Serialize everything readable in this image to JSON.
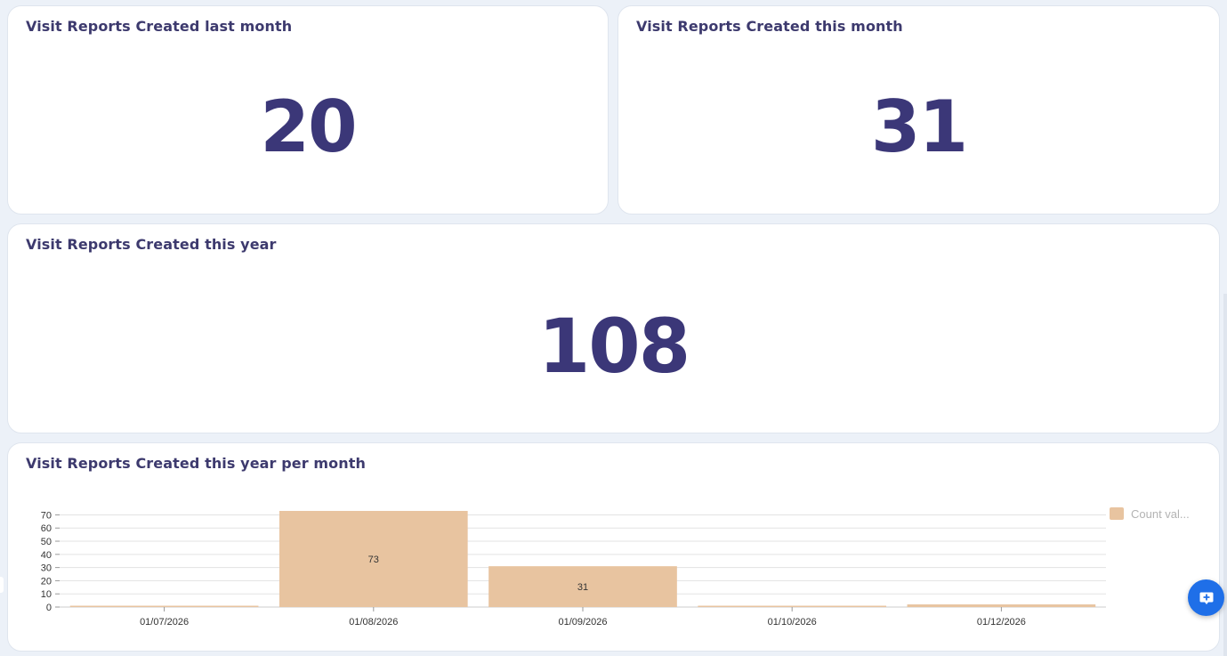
{
  "cards": {
    "last_month": {
      "title": "Visit Reports Created last month",
      "value": "20"
    },
    "this_month": {
      "title": "Visit Reports Created this month",
      "value": "31"
    },
    "this_year": {
      "title": "Visit Reports Created this year",
      "value": "108"
    },
    "per_month": {
      "title": "Visit Reports Created this year per month"
    }
  },
  "chart_data": {
    "type": "bar",
    "title": "Visit Reports Created this year per month",
    "categories": [
      "01/07/2026",
      "01/08/2026",
      "01/09/2026",
      "01/10/2026",
      "01/12/2026"
    ],
    "series": [
      {
        "name": "Count val...",
        "values": [
          1,
          73,
          31,
          1,
          2
        ],
        "labels": [
          "",
          "73",
          "31",
          "",
          ""
        ]
      }
    ],
    "ylim": [
      0,
      73
    ],
    "yticks": [
      0,
      10,
      20,
      30,
      40,
      50,
      60,
      70
    ],
    "xlabel": "",
    "ylabel": "",
    "grid": true,
    "legend": "top-right",
    "colors": {
      "bar": "#e8c4a0",
      "grid": "#e3e3e3",
      "axis": "#999999"
    }
  },
  "colors": {
    "background": "#ecf1f8",
    "card": "#ffffff",
    "title_text": "#3d3a6e",
    "number_text": "#3b3778",
    "fab": "#1f6fe8"
  },
  "fab": {
    "icon": "chat-plus-icon"
  }
}
